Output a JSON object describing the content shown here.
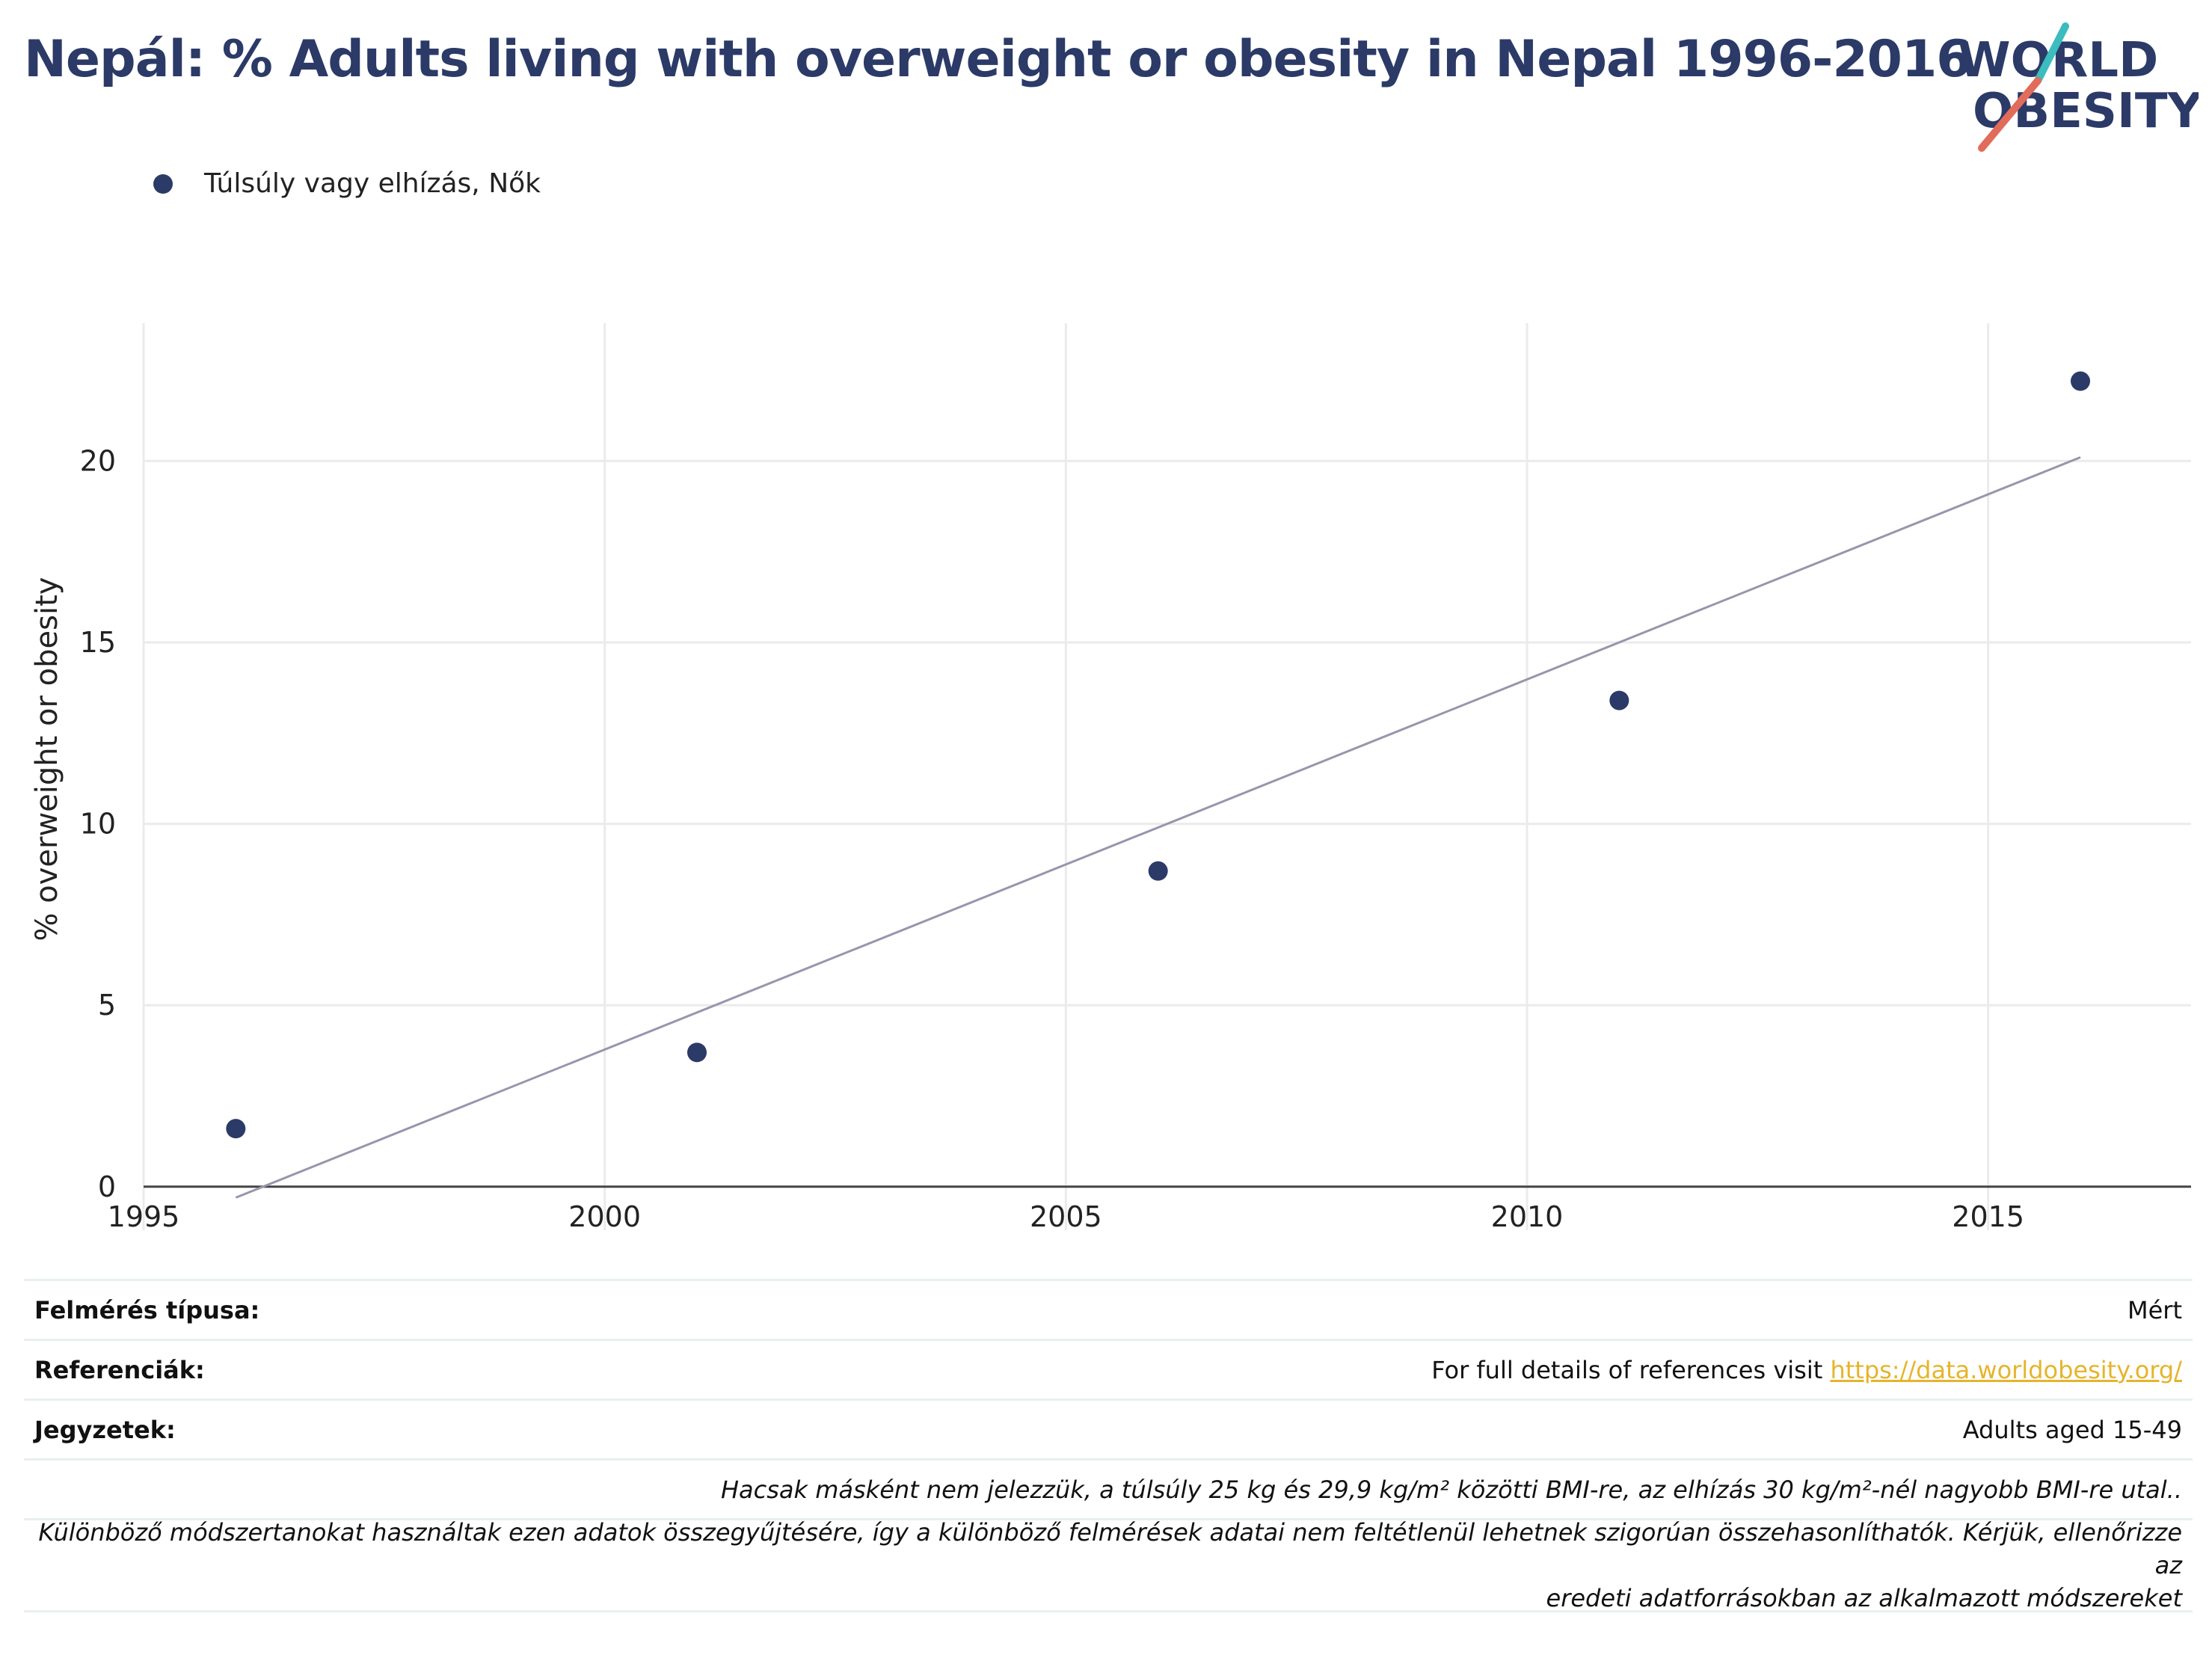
{
  "title": "Nepál: % Adults living with overweight or obesity in Nepal 1996-2016",
  "logo": {
    "line1": "WORLD",
    "line2": "OBESITY"
  },
  "legend": {
    "label": "Túlsúly vagy elhízás, Nők",
    "color": "#2b3a67"
  },
  "chart_data": {
    "type": "scatter",
    "title": "Nepál: % Adults living with overweight or obesity in Nepal 1996-2016",
    "xlabel": "",
    "ylabel": "% overweight or obesity",
    "xlim": [
      1995,
      2017.2
    ],
    "ylim": [
      -1.2,
      23.8
    ],
    "x_ticks": [
      1995,
      2000,
      2005,
      2010,
      2015
    ],
    "y_ticks": [
      0,
      5,
      10,
      15,
      20
    ],
    "grid": true,
    "legend_position": "top-left",
    "series": [
      {
        "name": "Túlsúly vagy elhízás, Nők",
        "color": "#2b3a67",
        "x": [
          1996,
          2001,
          2006,
          2011,
          2016
        ],
        "y": [
          1.6,
          3.7,
          8.7,
          13.4,
          22.2
        ]
      }
    ],
    "trendline": {
      "color": "#9a94ad",
      "x": [
        1996,
        2016
      ],
      "y": [
        -0.3,
        20.1
      ]
    }
  },
  "info": {
    "survey_type_label": "Felmérés típusa:",
    "survey_type_value": "Mért",
    "references_label": "Referenciák:",
    "references_text": "For full details of references visit ",
    "references_link": "https://data.worldobesity.org/",
    "notes_label": "Jegyzetek:",
    "notes_value": "Adults aged 15-49",
    "bmi_note": "Hacsak másként nem jelezzük, a túlsúly 25 kg és 29,9 kg/m² közötti BMI-re, az elhízás 30 kg/m²-nél nagyobb BMI-re utal..",
    "methods_note_line1": "Különböző módszertanokat használtak ezen adatok összegyűjtésére, így a különböző felmérések adatai nem feltétlenül lehetnek szigorúan összehasonlíthatók. Kérjük, ellenőrizze az",
    "methods_note_line2": "eredeti adatforrásokban az alkalmazott módszereket"
  }
}
